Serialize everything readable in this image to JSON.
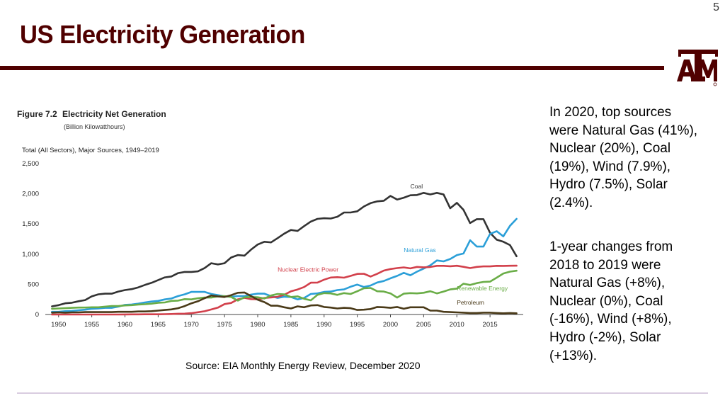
{
  "page_number": "5",
  "title": "US Electricity Generation",
  "logo_alt": "Texas A&M logo",
  "paragraphs": [
    "In 2020, top sources were Natural Gas (41%), Nuclear (20%), Coal (19%), Wind (7.9%), Hydro (7.5%), Solar (2.4%).",
    "1-year changes from 2018 to 2019 were Natural Gas (+8%), Nuclear (0%), Coal (-16%), Wind (+8%), Hydro (-2%), Solar (+13%)."
  ],
  "source": "Source: EIA Monthly Energy Review, December 2020",
  "colors": {
    "brand": "#500000",
    "coal": "#333333",
    "gas": "#2b9fd8",
    "nuclear": "#d2404b",
    "renewable": "#6aad47",
    "petroleum": "#4a3a18"
  },
  "chart_data": {
    "type": "line",
    "figure_label": "Figure 7.2",
    "title": "Electricity Net Generation",
    "subtitle": "(Billion Kilowatthours)",
    "scope": "Total (All Sectors), Major Sources, 1949–2019",
    "x": [
      1949,
      1950,
      1951,
      1952,
      1953,
      1954,
      1955,
      1956,
      1957,
      1958,
      1959,
      1960,
      1961,
      1962,
      1963,
      1964,
      1965,
      1966,
      1967,
      1968,
      1969,
      1970,
      1971,
      1972,
      1973,
      1974,
      1975,
      1976,
      1977,
      1978,
      1979,
      1980,
      1981,
      1982,
      1983,
      1984,
      1985,
      1986,
      1987,
      1988,
      1989,
      1990,
      1991,
      1992,
      1993,
      1994,
      1995,
      1996,
      1997,
      1998,
      1999,
      2000,
      2001,
      2002,
      2003,
      2004,
      2005,
      2006,
      2007,
      2008,
      2009,
      2010,
      2011,
      2012,
      2013,
      2014,
      2015,
      2016,
      2017,
      2018,
      2019
    ],
    "xlim": [
      1948,
      2020
    ],
    "ylim": [
      0,
      2500
    ],
    "yticks": [
      0,
      500,
      1000,
      1500,
      2000,
      2500
    ],
    "ytick_labels": [
      "0",
      "500",
      "1,000",
      "1,500",
      "2,000",
      "2,500"
    ],
    "xticks": [
      1950,
      1955,
      1960,
      1965,
      1970,
      1975,
      1980,
      1985,
      1990,
      1995,
      2000,
      2005,
      2010,
      2015
    ],
    "xtick_labels": [
      "1950",
      "1955",
      "1960",
      "1965",
      "1970",
      "1975",
      "1980",
      "1985",
      "1990",
      "1995",
      "2000",
      "2005",
      "2010",
      "2015"
    ],
    "series": [
      {
        "name": "Coal",
        "color_key": "coal",
        "label_year": 2003,
        "label_value": 2090,
        "values": [
          135,
          155,
          185,
          195,
          220,
          240,
          300,
          335,
          345,
          345,
          380,
          405,
          420,
          450,
          490,
          525,
          570,
          615,
          630,
          685,
          705,
          705,
          715,
          770,
          850,
          830,
          850,
          945,
          985,
          975,
          1075,
          1160,
          1205,
          1195,
          1265,
          1340,
          1400,
          1385,
          1465,
          1540,
          1585,
          1595,
          1590,
          1620,
          1690,
          1690,
          1710,
          1790,
          1845,
          1875,
          1885,
          1965,
          1905,
          1935,
          1975,
          1980,
          2015,
          1990,
          2015,
          1990,
          1760,
          1850,
          1735,
          1515,
          1580,
          1580,
          1355,
          1240,
          1205,
          1150,
          965
        ]
      },
      {
        "name": "Natural Gas",
        "color_key": "gas",
        "label_year": 2002,
        "label_value": 1030,
        "values": [
          45,
          45,
          55,
          60,
          70,
          80,
          95,
          100,
          110,
          110,
          130,
          160,
          165,
          180,
          200,
          215,
          225,
          250,
          265,
          305,
          335,
          375,
          375,
          375,
          340,
          320,
          300,
          295,
          305,
          305,
          330,
          345,
          345,
          305,
          275,
          295,
          290,
          250,
          275,
          340,
          350,
          375,
          380,
          405,
          415,
          460,
          495,
          455,
          480,
          530,
          555,
          600,
          640,
          690,
          650,
          710,
          760,
          815,
          895,
          880,
          920,
          985,
          1010,
          1230,
          1125,
          1125,
          1335,
          1380,
          1295,
          1470,
          1585
        ]
      },
      {
        "name": "Nuclear Electric Power",
        "color_key": "nuclear",
        "label_year": 1983,
        "label_value": 710,
        "values": [
          0,
          0,
          0,
          0,
          0,
          0,
          0,
          0,
          0,
          0,
          0,
          1,
          2,
          2,
          3,
          3,
          4,
          6,
          8,
          13,
          14,
          22,
          38,
          54,
          83,
          114,
          173,
          191,
          251,
          276,
          255,
          251,
          273,
          283,
          294,
          328,
          384,
          414,
          455,
          527,
          529,
          577,
          613,
          619,
          610,
          640,
          673,
          675,
          629,
          674,
          728,
          754,
          769,
          780,
          764,
          789,
          782,
          787,
          806,
          806,
          799,
          807,
          790,
          769,
          789,
          797,
          797,
          806,
          805,
          807,
          809
        ]
      },
      {
        "name": "Renewable Energy",
        "color_key": "renewable",
        "label_year": 2010,
        "label_value": 400,
        "values": [
          95,
          100,
          105,
          110,
          115,
          115,
          120,
          120,
          130,
          140,
          140,
          150,
          155,
          165,
          170,
          180,
          195,
          200,
          225,
          230,
          255,
          250,
          270,
          280,
          280,
          300,
          305,
          290,
          230,
          285,
          290,
          285,
          265,
          315,
          340,
          335,
          290,
          300,
          260,
          235,
          325,
          355,
          350,
          325,
          355,
          340,
          385,
          435,
          440,
          385,
          380,
          350,
          280,
          345,
          355,
          350,
          360,
          385,
          350,
          380,
          415,
          430,
          510,
          490,
          520,
          540,
          545,
          610,
          680,
          710,
          725
        ]
      },
      {
        "name": "Petroleum",
        "color_key": "petroleum",
        "label_year": 2010,
        "label_value": 165,
        "values": [
          30,
          35,
          30,
          35,
          35,
          40,
          40,
          40,
          40,
          40,
          45,
          45,
          45,
          50,
          50,
          55,
          65,
          75,
          85,
          105,
          140,
          185,
          220,
          270,
          315,
          300,
          290,
          320,
          360,
          365,
          305,
          245,
          205,
          145,
          145,
          120,
          100,
          135,
          120,
          150,
          155,
          125,
          115,
          100,
          110,
          105,
          75,
          80,
          90,
          125,
          120,
          110,
          125,
          95,
          120,
          120,
          120,
          65,
          65,
          45,
          40,
          35,
          30,
          25,
          25,
          30,
          30,
          25,
          20,
          25,
          20
        ]
      }
    ]
  }
}
